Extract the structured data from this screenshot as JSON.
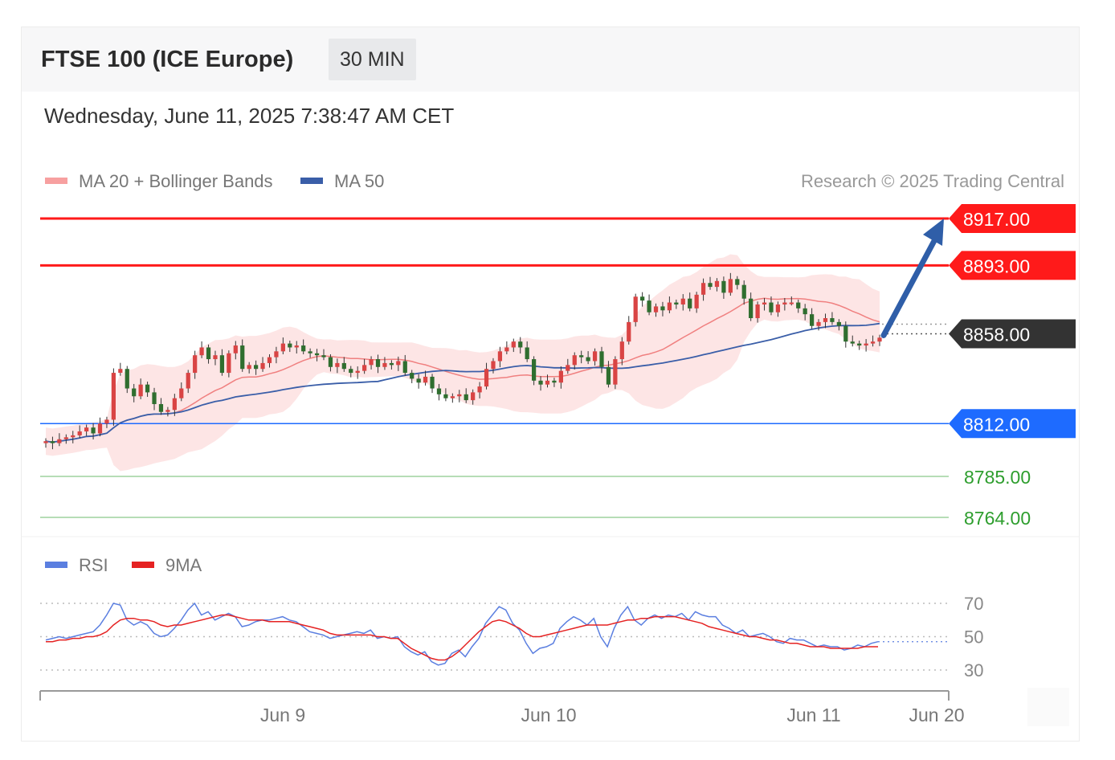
{
  "header": {
    "title": "FTSE 100 (ICE Europe)",
    "timeframe": "30 MIN",
    "datetime": "Wednesday, June 11, 2025 7:38:47 AM CET"
  },
  "legend": {
    "ma20": "MA 20 + Bollinger Bands",
    "ma50": "MA 50",
    "credit": "Research © 2025 Trading Central"
  },
  "rsi_legend": {
    "rsi": "RSI",
    "ma9": "9MA"
  },
  "colors": {
    "resistance": "#ff1a1a",
    "current": "#333333",
    "pivot": "#1e6bff",
    "support": "#2e9e2e",
    "ma20": "#f08080",
    "ma50": "#3a5ea8",
    "bollinger": "#fde0e0",
    "bull": "#d94444",
    "bear": "#2f6e2f",
    "arrow": "#2f5ea8",
    "rsi": "#5b7fe0",
    "rsi_ma": "#e52222"
  },
  "chart_data": [
    {
      "type": "line",
      "name": "price",
      "ylim": [
        8748,
        8930
      ],
      "x_ticks": [
        "Jun 9",
        "Jun 10",
        "Jun 11",
        "Jun 20"
      ],
      "levels": [
        {
          "value": 8917.0,
          "label": "8917.00",
          "kind": "resistance"
        },
        {
          "value": 8893.0,
          "label": "8893.00",
          "kind": "resistance"
        },
        {
          "value": 8858.0,
          "label": "8858.00",
          "kind": "current"
        },
        {
          "value": 8812.0,
          "label": "8812.00",
          "kind": "pivot"
        },
        {
          "value": 8785.0,
          "label": "8785.00",
          "kind": "support"
        },
        {
          "value": 8764.0,
          "label": "8764.00",
          "kind": "support"
        }
      ],
      "close": [
        8803,
        8802,
        8804,
        8805,
        8806,
        8808,
        8810,
        8807,
        8812,
        8814,
        8838,
        8840,
        8830,
        8826,
        8832,
        8828,
        8822,
        8818,
        8819,
        8825,
        8830,
        8838,
        8847,
        8851,
        8845,
        8847,
        8838,
        8848,
        8852,
        8840,
        8842,
        8840,
        8843,
        8846,
        8849,
        8853,
        8851,
        8852,
        8849,
        8848,
        8847,
        8846,
        8841,
        8843,
        8840,
        8838,
        8839,
        8842,
        8845,
        8841,
        8843,
        8842,
        8844,
        8838,
        8835,
        8833,
        8836,
        8830,
        8827,
        8825,
        8826,
        8827,
        8824,
        8828,
        8831,
        8840,
        8844,
        8849,
        8851,
        8854,
        8851,
        8845,
        8834,
        8832,
        8834,
        8833,
        8839,
        8842,
        8847,
        8846,
        8844,
        8849,
        8841,
        8832,
        8845,
        8854,
        8864,
        8877,
        8875,
        8869,
        8872,
        8870,
        8874,
        8873,
        8876,
        8871,
        8878,
        8884,
        8882,
        8885,
        8879,
        8886,
        8883,
        8876,
        8866,
        8873,
        8874,
        8869,
        8873,
        8874,
        8874,
        8871,
        8868,
        8862,
        8864,
        8866,
        8864,
        8862,
        8854,
        8853,
        8852,
        8853,
        8854,
        8856
      ]
    },
    {
      "type": "line",
      "name": "RSI",
      "ylim": [
        25,
        75
      ],
      "y_ticks": [
        70,
        50,
        30
      ],
      "rsi": [
        48,
        49,
        50,
        49,
        50,
        51,
        52,
        53,
        57,
        63,
        70,
        69,
        60,
        57,
        59,
        57,
        52,
        50,
        51,
        55,
        60,
        66,
        70,
        63,
        65,
        60,
        62,
        64,
        62,
        56,
        57,
        59,
        60,
        60,
        61,
        62,
        60,
        59,
        56,
        53,
        52,
        51,
        49,
        50,
        51,
        52,
        53,
        52,
        54,
        49,
        50,
        49,
        50,
        44,
        41,
        39,
        41,
        35,
        33,
        34,
        40,
        42,
        38,
        44,
        49,
        58,
        63,
        68,
        66,
        58,
        54,
        46,
        40,
        43,
        44,
        46,
        55,
        59,
        62,
        60,
        57,
        61,
        50,
        44,
        55,
        63,
        68,
        60,
        57,
        61,
        63,
        61,
        63,
        62,
        64,
        60,
        65,
        63,
        62,
        62,
        57,
        55,
        52,
        54,
        50,
        51,
        52,
        50,
        47,
        46,
        49,
        48,
        48,
        46,
        44,
        45,
        44,
        44,
        42,
        43,
        45,
        44,
        46,
        47
      ],
      "ma9": [
        47,
        47,
        48,
        48,
        49,
        49,
        50,
        50,
        51,
        53,
        57,
        60,
        61,
        61,
        60,
        60,
        59,
        57,
        56,
        57,
        57,
        58,
        59,
        60,
        61,
        62,
        63,
        63,
        62,
        61,
        60,
        60,
        60,
        59,
        59,
        59,
        59,
        58,
        57,
        56,
        55,
        54,
        52,
        51,
        51,
        51,
        51,
        51,
        51,
        50,
        50,
        49,
        49,
        46,
        43,
        41,
        39,
        37,
        36,
        36,
        38,
        41,
        45,
        49,
        53,
        56,
        59,
        60,
        59,
        57,
        55,
        52,
        50,
        50,
        51,
        52,
        53,
        54,
        55,
        56,
        57,
        57,
        57,
        57,
        58,
        59,
        60,
        60,
        61,
        61,
        62,
        62,
        62,
        62,
        61,
        60,
        59,
        58,
        56,
        55,
        54,
        53,
        52,
        51,
        50,
        50,
        49,
        48,
        48,
        47,
        46,
        46,
        45,
        44,
        44,
        44,
        43,
        43,
        43,
        43,
        43,
        44,
        44,
        44
      ]
    }
  ]
}
